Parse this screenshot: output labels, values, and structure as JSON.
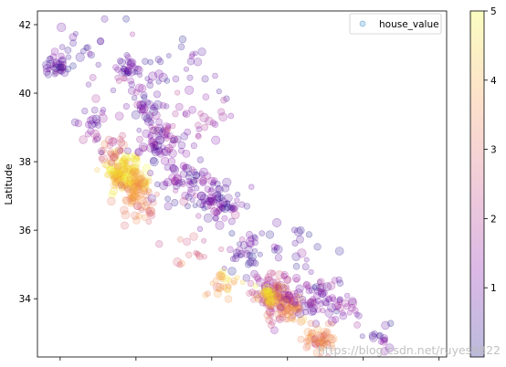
{
  "chart_data": {
    "type": "scatter",
    "ylabel": "Latitude",
    "xlabel": "",
    "xlim": [
      -124.6,
      -113.8
    ],
    "ylim": [
      32.3,
      42.4
    ],
    "yticks": [
      34,
      36,
      38,
      40,
      42
    ],
    "xticks_unlabeled": [
      -124,
      -122,
      -120,
      -118,
      -116,
      -114
    ],
    "legend": {
      "label": "house_value",
      "placement": "top-right"
    },
    "colorbar": {
      "min": 0,
      "max": 5,
      "ticks": [
        1,
        2,
        3,
        4,
        5
      ],
      "colormap": "plasma"
    },
    "marker_alpha": 0.2,
    "clusters": [
      {
        "lon": -122.3,
        "lat": 37.8,
        "value": 4.6,
        "spread": 0.22,
        "count": 70
      },
      {
        "lon": -122.4,
        "lat": 37.55,
        "value": 4.2,
        "spread": 0.18,
        "count": 45
      },
      {
        "lon": -121.95,
        "lat": 37.35,
        "value": 4.3,
        "spread": 0.2,
        "count": 45
      },
      {
        "lon": -122.1,
        "lat": 37.05,
        "value": 3.4,
        "spread": 0.25,
        "count": 25
      },
      {
        "lon": -121.8,
        "lat": 36.6,
        "value": 3.0,
        "spread": 0.25,
        "count": 20
      },
      {
        "lon": -121.45,
        "lat": 38.58,
        "value": 1.2,
        "spread": 0.3,
        "count": 60
      },
      {
        "lon": -121.0,
        "lat": 37.65,
        "value": 1.0,
        "spread": 0.35,
        "count": 40
      },
      {
        "lon": -119.8,
        "lat": 36.75,
        "value": 0.9,
        "spread": 0.35,
        "count": 55
      },
      {
        "lon": -120.3,
        "lat": 37.2,
        "value": 0.9,
        "spread": 0.4,
        "count": 40
      },
      {
        "lon": -119.0,
        "lat": 35.4,
        "value": 0.8,
        "spread": 0.35,
        "count": 35
      },
      {
        "lon": -118.3,
        "lat": 34.05,
        "value": 2.2,
        "spread": 0.3,
        "count": 110
      },
      {
        "lon": -118.5,
        "lat": 34.05,
        "value": 4.6,
        "spread": 0.15,
        "count": 40
      },
      {
        "lon": -117.95,
        "lat": 33.7,
        "value": 3.4,
        "spread": 0.22,
        "count": 50
      },
      {
        "lon": -117.3,
        "lat": 34.05,
        "value": 1.1,
        "spread": 0.3,
        "count": 55
      },
      {
        "lon": -117.15,
        "lat": 32.8,
        "value": 3.3,
        "spread": 0.2,
        "count": 55
      },
      {
        "lon": -119.7,
        "lat": 34.42,
        "value": 4.0,
        "spread": 0.2,
        "count": 25
      },
      {
        "lon": -120.6,
        "lat": 35.3,
        "value": 2.8,
        "spread": 0.25,
        "count": 15
      },
      {
        "lon": -122.6,
        "lat": 38.4,
        "value": 2.6,
        "spread": 0.25,
        "count": 25
      },
      {
        "lon": -123.1,
        "lat": 39.2,
        "value": 1.1,
        "spread": 0.35,
        "count": 25
      },
      {
        "lon": -122.35,
        "lat": 40.6,
        "value": 0.8,
        "spread": 0.3,
        "count": 35
      },
      {
        "lon": -121.8,
        "lat": 39.7,
        "value": 0.9,
        "spread": 0.3,
        "count": 30
      },
      {
        "lon": -124.1,
        "lat": 40.75,
        "value": 0.8,
        "spread": 0.18,
        "count": 30
      },
      {
        "lon": -120.2,
        "lat": 39.3,
        "value": 1.4,
        "spread": 0.4,
        "count": 25
      },
      {
        "lon": -115.5,
        "lat": 32.8,
        "value": 0.7,
        "spread": 0.2,
        "count": 15
      },
      {
        "lon": -116.5,
        "lat": 33.8,
        "value": 1.2,
        "spread": 0.3,
        "count": 25
      },
      {
        "lon": -117.7,
        "lat": 35.5,
        "value": 0.8,
        "spread": 0.5,
        "count": 25
      },
      {
        "lon": -121.0,
        "lat": 40.8,
        "value": 0.8,
        "spread": 0.7,
        "count": 30
      },
      {
        "lon": -123.5,
        "lat": 41.3,
        "value": 0.8,
        "spread": 0.5,
        "count": 25
      },
      {
        "lon": -122.1,
        "lat": 36.95,
        "value": 3.8,
        "spread": 0.12,
        "count": 15
      }
    ]
  },
  "watermark": "https://blog.csdn.net/ruyes9822"
}
